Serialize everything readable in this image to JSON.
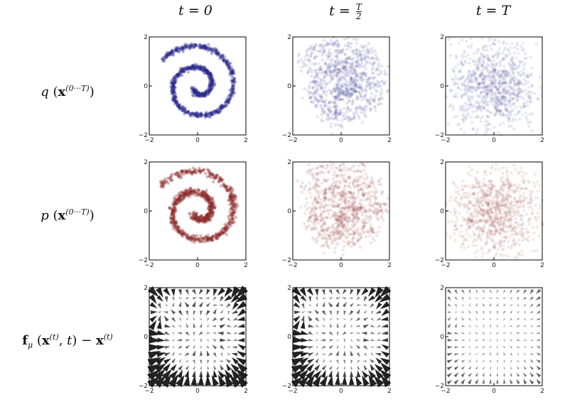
{
  "column_headers": [
    {
      "var": "t",
      "eq": "=",
      "value": "0"
    },
    {
      "var": "t",
      "eq": "=",
      "num": "T",
      "den": "2"
    },
    {
      "var": "t",
      "eq": "=",
      "value": "T"
    }
  ],
  "row_labels": [
    {
      "fn": "q",
      "vec": "x",
      "sup": "(0···T)"
    },
    {
      "fn": "p",
      "vec": "x",
      "sup": "(0···T)"
    },
    {
      "fn": "f",
      "sub": "μ",
      "vec": "x",
      "sup": "(t)",
      "arg2": "t",
      "minus": "−",
      "sup2": "(t)"
    }
  ],
  "axis_ticks": {
    "x": [
      "−2",
      "0",
      "2"
    ],
    "y": [
      "2",
      "0",
      "−2"
    ]
  },
  "colors": {
    "q": "#2a2a8c",
    "p": "#8c2a2a",
    "arrows": "#222222"
  },
  "chart_data": {
    "type": "scatter",
    "xlim": [
      -2,
      2
    ],
    "ylim": [
      -2,
      2
    ],
    "grid": false,
    "panels": [
      {
        "row": "q",
        "column": "t = 0",
        "distribution": "spiral",
        "noise": 0.0,
        "opacity": 0.35
      },
      {
        "row": "q",
        "column": "t = T/2",
        "distribution": "spiral",
        "noise": 0.35,
        "opacity": 0.12
      },
      {
        "row": "q",
        "column": "t = T",
        "distribution": "gaussian",
        "noise": 1.0,
        "opacity": 0.1
      },
      {
        "row": "p",
        "column": "t = 0",
        "distribution": "spiral",
        "noise": 0.03,
        "opacity": 0.35
      },
      {
        "row": "p",
        "column": "t = T/2",
        "distribution": "spiral",
        "noise": 0.4,
        "opacity": 0.12
      },
      {
        "row": "p",
        "column": "t = T",
        "distribution": "gaussian",
        "noise": 1.0,
        "opacity": 0.1
      },
      {
        "row": "drift",
        "column": "t = 0",
        "type": "quiver",
        "strength": 1.0
      },
      {
        "row": "drift",
        "column": "t = T/2",
        "type": "quiver",
        "strength": 0.9
      },
      {
        "row": "drift",
        "column": "t = T",
        "type": "quiver",
        "strength": 0.25
      }
    ]
  }
}
